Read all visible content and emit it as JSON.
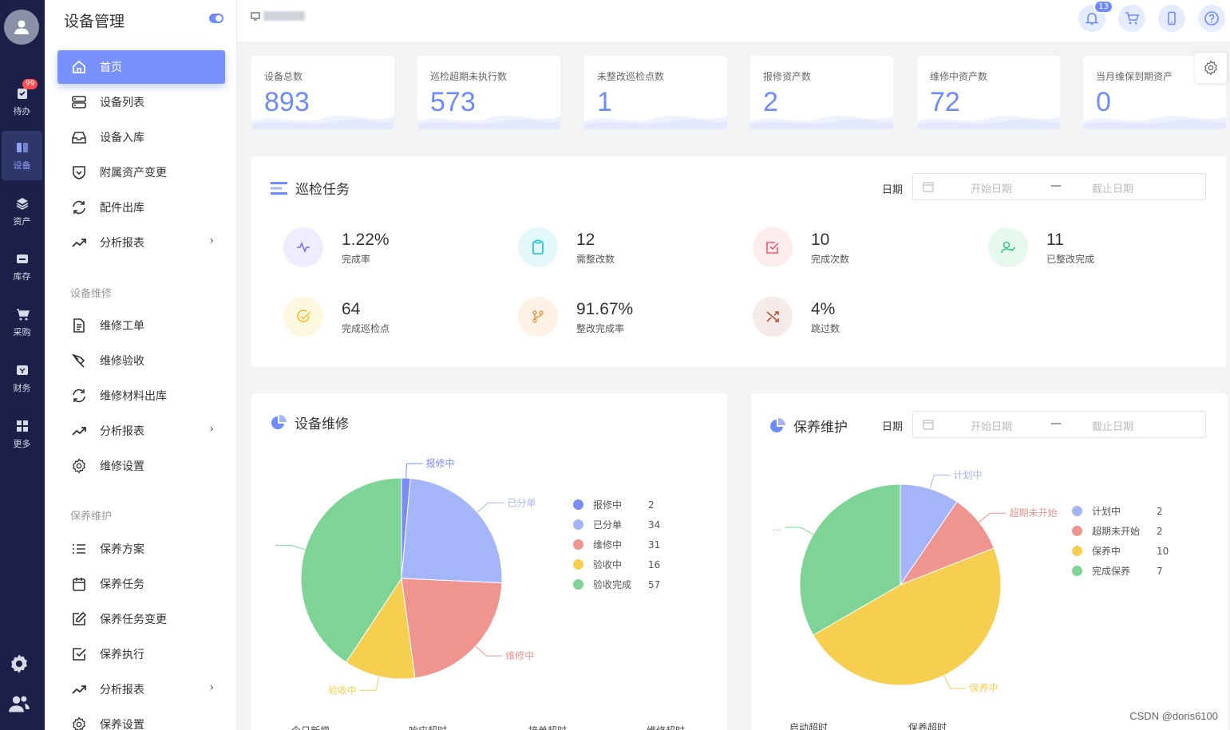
{
  "rail": {
    "items": [
      {
        "label": "待办",
        "badge": "99"
      },
      {
        "label": "设备"
      },
      {
        "label": "资产"
      },
      {
        "label": "库存"
      },
      {
        "label": "采购"
      },
      {
        "label": "财务"
      },
      {
        "label": "更多"
      }
    ],
    "active_index": 1
  },
  "sidebar": {
    "title": "设备管理",
    "items": [
      {
        "label": "首页",
        "icon": "home-icon",
        "active": true
      },
      {
        "label": "设备列表",
        "icon": "server-icon"
      },
      {
        "label": "设备入库",
        "icon": "inbox-icon"
      },
      {
        "label": "附属资产变更",
        "icon": "shield-check-icon"
      },
      {
        "label": "配件出库",
        "icon": "refresh-icon"
      },
      {
        "label": "分析报表",
        "icon": "trend-icon",
        "has_submenu": true
      }
    ],
    "groups": [
      {
        "label": "设备维修",
        "items": [
          {
            "label": "维修工单",
            "icon": "document-icon"
          },
          {
            "label": "维修验收",
            "icon": "pen-tool-icon"
          },
          {
            "label": "维修材料出库",
            "icon": "refresh-icon"
          },
          {
            "label": "分析报表",
            "icon": "trend-icon",
            "has_submenu": true
          },
          {
            "label": "维修设置",
            "icon": "gear-icon"
          }
        ]
      },
      {
        "label": "保养维护",
        "items": [
          {
            "label": "保养方案",
            "icon": "list-icon"
          },
          {
            "label": "保养任务",
            "icon": "calendar-icon"
          },
          {
            "label": "保养任务变更",
            "icon": "edit-icon"
          },
          {
            "label": "保养执行",
            "icon": "checkbox-icon"
          },
          {
            "label": "分析报表",
            "icon": "trend-icon",
            "has_submenu": true
          },
          {
            "label": "保养设置",
            "icon": "gear-icon"
          }
        ]
      }
    ]
  },
  "topbar": {
    "notification_count": "13"
  },
  "stats": [
    {
      "label": "设备总数",
      "value": "893"
    },
    {
      "label": "巡检超期未执行数",
      "value": "573"
    },
    {
      "label": "未整改巡检点数",
      "value": "1"
    },
    {
      "label": "报修资产数",
      "value": "2"
    },
    {
      "label": "维修中资产数",
      "value": "72"
    },
    {
      "label": "当月维保到期资产",
      "value": "0"
    }
  ],
  "inspection": {
    "title": "巡检任务",
    "date_label": "日期",
    "start_placeholder": "开始日期",
    "separator": "—",
    "end_placeholder": "截止日期",
    "metrics": [
      {
        "value": "1.22%",
        "label": "完成率",
        "icon": "activity-icon",
        "color": "#7b6cf6",
        "bg": "#efedfd"
      },
      {
        "value": "12",
        "label": "需整改数",
        "icon": "clipboard-icon",
        "color": "#1bbfd6",
        "bg": "#e3f8fb"
      },
      {
        "value": "10",
        "label": "完成次数",
        "icon": "check-square-icon",
        "color": "#ef5b6b",
        "bg": "#fdecee"
      },
      {
        "value": "11",
        "label": "已整改完成",
        "icon": "user-check-icon",
        "color": "#3ec98a",
        "bg": "#e7f8ef"
      },
      {
        "value": "64",
        "label": "完成巡检点",
        "icon": "check-circle-icon",
        "color": "#f2c230",
        "bg": "#fef7e0"
      },
      {
        "value": "91.67%",
        "label": "整改完成率",
        "icon": "git-branch-icon",
        "color": "#f29a4a",
        "bg": "#fef1e6"
      },
      {
        "value": "4%",
        "label": "跳过数",
        "icon": "shuffle-icon",
        "color": "#b5553a",
        "bg": "#f6ebe8"
      }
    ]
  },
  "repair": {
    "title": "设备维修",
    "footer": [
      "今日新增",
      "响应超时",
      "接单超时",
      "维修超时"
    ]
  },
  "maintenance": {
    "title": "保养维护",
    "date_label": "日期",
    "start_placeholder": "开始日期",
    "separator": "—",
    "end_placeholder": "截止日期",
    "footer": [
      "启动超时",
      "保养超时"
    ]
  },
  "chart_data": [
    {
      "type": "pie",
      "title": "设备维修",
      "categories": [
        "报修中",
        "已分单",
        "维修中",
        "验收中",
        "验收完成"
      ],
      "values": [
        2,
        34,
        31,
        16,
        57
      ],
      "colors": [
        "#7b8cf5",
        "#a4b6f9",
        "#ee9590",
        "#f6cf50",
        "#7dd494"
      ],
      "slice_labels": [
        "报修中",
        "已分单",
        "维修中",
        "验收中",
        ""
      ],
      "legend_position": "right"
    },
    {
      "type": "pie",
      "title": "保养维护",
      "categories": [
        "计划中",
        "超期未开始",
        "保养中",
        "完成保养"
      ],
      "values": [
        2,
        2,
        10,
        7
      ],
      "colors": [
        "#a4b6f9",
        "#ee9590",
        "#f6cf50",
        "#7dd494"
      ],
      "slice_labels": [
        "计划中",
        "超期未开始",
        "保养中",
        "..."
      ],
      "legend_position": "right"
    }
  ],
  "watermark": "CSDN @doris6100"
}
